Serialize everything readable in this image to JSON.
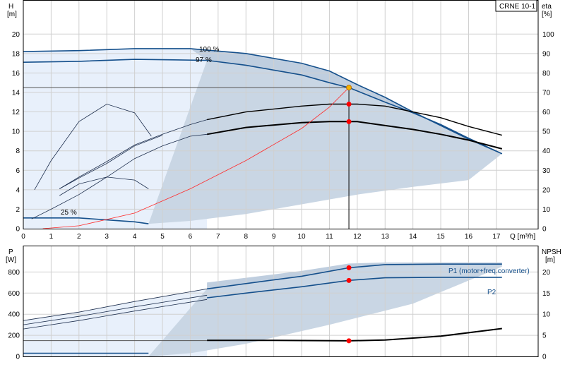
{
  "product_label": "CRNE 10-1",
  "colors": {
    "region_light": "#e8f0fb",
    "region_mid": "#c9d6e4",
    "region_dark": "#a9bed4",
    "blue_curve": "#15508c",
    "thin_curve": "#1e2f4e",
    "black_curve": "#000000",
    "system_curve": "#ff2a2a",
    "duty_point": "#ff0000",
    "duty_point_top": "#f5b400",
    "grid": "#d0d0d0"
  },
  "chart_data": [
    {
      "type": "line",
      "x_axis": {
        "label": "Q [m³/h]",
        "range": [
          0,
          18.5
        ],
        "ticks": [
          0,
          1,
          2,
          3,
          4,
          5,
          6,
          7,
          8,
          9,
          10,
          11,
          12,
          13,
          14,
          15,
          16,
          17
        ]
      },
      "y_axis_left": {
        "label": "H",
        "unit": "[m]",
        "range": [
          0,
          23.5
        ],
        "ticks": [
          0,
          2,
          4,
          6,
          8,
          10,
          12,
          14,
          16,
          18,
          20
        ]
      },
      "y_axis_right": {
        "label": "eta",
        "unit": "[%]",
        "range": [
          0,
          117.5
        ],
        "ticks": [
          0,
          10,
          20,
          30,
          40,
          50,
          60,
          70,
          80,
          90,
          100
        ]
      },
      "grid": true,
      "annotations": [
        "100 %",
        "97 %",
        "25 %"
      ],
      "series": [
        {
          "name": "100 %",
          "style": "blue",
          "points": [
            [
              0,
              18.2
            ],
            [
              2,
              18.3
            ],
            [
              4,
              18.5
            ],
            [
              6,
              18.5
            ],
            [
              8,
              18.0
            ],
            [
              10,
              17.0
            ],
            [
              11,
              16.2
            ],
            [
              12,
              14.8
            ],
            [
              13,
              13.5
            ],
            [
              14,
              12.0
            ],
            [
              15,
              10.6
            ],
            [
              16,
              9.2
            ],
            [
              17.2,
              7.7
            ]
          ]
        },
        {
          "name": "97 %",
          "style": "blue",
          "points": [
            [
              0,
              17.1
            ],
            [
              2,
              17.2
            ],
            [
              4,
              17.4
            ],
            [
              6.6,
              17.3
            ],
            [
              8,
              16.8
            ],
            [
              10,
              15.8
            ],
            [
              11,
              15.0
            ],
            [
              11.7,
              14.5
            ],
            [
              13,
              13.0
            ],
            [
              14,
              11.9
            ],
            [
              15,
              10.7
            ],
            [
              16,
              9.3
            ],
            [
              17.2,
              7.7
            ]
          ]
        },
        {
          "name": "25 %",
          "style": "blue",
          "points": [
            [
              0,
              1.1
            ],
            [
              1,
              1.1
            ],
            [
              2,
              1.1
            ],
            [
              3,
              0.9
            ],
            [
              4,
              0.7
            ],
            [
              4.5,
              0.5
            ]
          ]
        },
        {
          "style": "thin",
          "points": [
            [
              0.4,
              4.0
            ],
            [
              1,
              7.0
            ],
            [
              2,
              11.0
            ],
            [
              3,
              12.8
            ],
            [
              4,
              11.9
            ],
            [
              4.6,
              9.5
            ]
          ]
        },
        {
          "style": "thin",
          "points": [
            [
              1.3,
              4.1
            ],
            [
              2,
              5.2
            ],
            [
              3,
              6.7
            ],
            [
              4,
              8.5
            ],
            [
              5,
              9.6
            ]
          ]
        },
        {
          "style": "thin",
          "points": [
            [
              1.3,
              3.4
            ],
            [
              2,
              4.6
            ],
            [
              3,
              5.3
            ],
            [
              4,
              5.0
            ],
            [
              4.5,
              4.1
            ]
          ]
        },
        {
          "style": "thin",
          "points": [
            [
              0.3,
              1.0
            ],
            [
              1,
              2.0
            ],
            [
              2,
              3.5
            ],
            [
              3,
              5.3
            ],
            [
              4,
              7.2
            ],
            [
              5,
              8.5
            ],
            [
              6,
              9.5
            ],
            [
              6.6,
              9.7
            ]
          ]
        },
        {
          "style": "thin",
          "points": [
            [
              1.3,
              4.1
            ],
            [
              2,
              5.3
            ],
            [
              3,
              6.9
            ],
            [
              4,
              8.6
            ],
            [
              5,
              9.7
            ],
            [
              6,
              10.7
            ],
            [
              6.6,
              11.2
            ]
          ]
        },
        {
          "style": "black",
          "points": [
            [
              6.6,
              11.2
            ],
            [
              8,
              12.0
            ],
            [
              10,
              12.6
            ],
            [
              11,
              12.8
            ],
            [
              12,
              12.8
            ],
            [
              13,
              12.6
            ],
            [
              14,
              12.0
            ],
            [
              15,
              11.4
            ],
            [
              16,
              10.5
            ],
            [
              17.2,
              9.6
            ]
          ]
        },
        {
          "style": "black_thick",
          "points": [
            [
              6.6,
              9.7
            ],
            [
              8,
              10.4
            ],
            [
              10,
              10.9
            ],
            [
              11,
              11.0
            ],
            [
              12,
              11.0
            ],
            [
              13,
              10.6
            ],
            [
              14,
              10.2
            ],
            [
              15,
              9.7
            ],
            [
              16,
              9.1
            ],
            [
              17.2,
              8.2
            ]
          ]
        },
        {
          "style": "system",
          "points": [
            [
              0.7,
              0.0
            ],
            [
              2,
              0.3
            ],
            [
              4,
              1.6
            ],
            [
              6,
              4.1
            ],
            [
              8,
              7.0
            ],
            [
              10,
              10.3
            ],
            [
              11,
              12.5
            ],
            [
              11.7,
              14.5
            ]
          ]
        }
      ],
      "duty_points": [
        {
          "x": 11.7,
          "y": 14.5
        },
        {
          "x": 11.7,
          "y": 12.8
        },
        {
          "x": 11.7,
          "y": 11.0
        }
      ]
    },
    {
      "type": "line",
      "x_axis": {
        "range": [
          0,
          18.5
        ]
      },
      "y_axis_left": {
        "label": "P",
        "unit": "[W]",
        "range": [
          0,
          1050
        ],
        "ticks": [
          0,
          200,
          400,
          600,
          800
        ]
      },
      "y_axis_right": {
        "label": "NPSH",
        "unit": "[m]",
        "range": [
          0,
          26.25
        ],
        "ticks": [
          0,
          5,
          10,
          15,
          20
        ]
      },
      "grid": true,
      "series": [
        {
          "name": "P1 (motor+freq.converter)",
          "style": "blue",
          "points": [
            [
              6.6,
              640
            ],
            [
              8,
              690
            ],
            [
              10,
              760
            ],
            [
              11.7,
              840
            ],
            [
              13,
              870
            ],
            [
              15,
              875
            ],
            [
              17.2,
              875
            ]
          ]
        },
        {
          "name": "P2",
          "style": "blue",
          "points": [
            [
              6.6,
              555
            ],
            [
              8,
              600
            ],
            [
              10,
              660
            ],
            [
              11.7,
              720
            ],
            [
              13,
              745
            ],
            [
              15,
              750
            ],
            [
              17.2,
              750
            ]
          ]
        },
        {
          "style": "thin",
          "points": [
            [
              0,
              340
            ],
            [
              2,
              420
            ],
            [
              4,
              520
            ],
            [
              6.6,
              640
            ]
          ]
        },
        {
          "style": "thin",
          "points": [
            [
              0,
              300
            ],
            [
              2,
              380
            ],
            [
              4,
              470
            ],
            [
              6.6,
              580
            ]
          ]
        },
        {
          "style": "thin",
          "points": [
            [
              0,
              260
            ],
            [
              2,
              340
            ],
            [
              4,
              430
            ],
            [
              6.6,
              540
            ]
          ]
        },
        {
          "style": "blue",
          "points": [
            [
              0,
              30
            ],
            [
              2,
              30
            ],
            [
              4.5,
              30
            ]
          ]
        },
        {
          "name": "NPSH",
          "axis": "right",
          "style": "black_thick",
          "points": [
            [
              6.6,
              3.8
            ],
            [
              9,
              3.8
            ],
            [
              11.7,
              3.7
            ],
            [
              13,
              3.9
            ],
            [
              15,
              4.8
            ],
            [
              17.2,
              6.6
            ]
          ]
        }
      ],
      "duty_points": [
        {
          "x": 11.7,
          "y": 840
        },
        {
          "x": 11.7,
          "y": 720
        },
        {
          "x": 11.7,
          "y": 3.7,
          "axis": "right"
        }
      ]
    }
  ]
}
